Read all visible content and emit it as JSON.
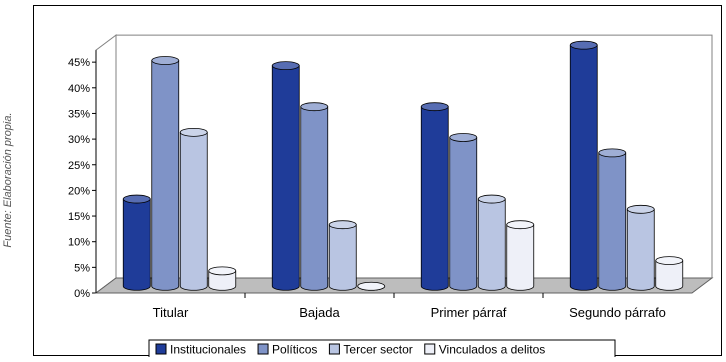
{
  "source_note": "Fuente: Elaboración propia.",
  "chart_data": {
    "type": "bar",
    "title": "",
    "xlabel": "",
    "ylabel": "",
    "categories": [
      "Titular",
      "Bajada",
      "Primer párraf",
      "Segundo párrafo"
    ],
    "ylim": [
      0,
      45
    ],
    "yticks": [
      "0%",
      "5%",
      "10%",
      "15%",
      "20%",
      "25%",
      "30%",
      "35%",
      "40%",
      "45%"
    ],
    "grid": true,
    "legend_position": "bottom",
    "series": [
      {
        "name": "Institucionales",
        "values": [
          17,
          43,
          35,
          47
        ],
        "color": "#1f3c99"
      },
      {
        "name": "Políticos",
        "values": [
          44,
          35,
          29,
          26
        ],
        "color": "#7f93c7"
      },
      {
        "name": "Tercer sector",
        "values": [
          30,
          12,
          17,
          15
        ],
        "color": "#b9c5e2"
      },
      {
        "name": "Vinculados a delitos",
        "values": [
          3,
          0,
          12,
          5
        ],
        "color": "#eef0f8"
      }
    ]
  }
}
